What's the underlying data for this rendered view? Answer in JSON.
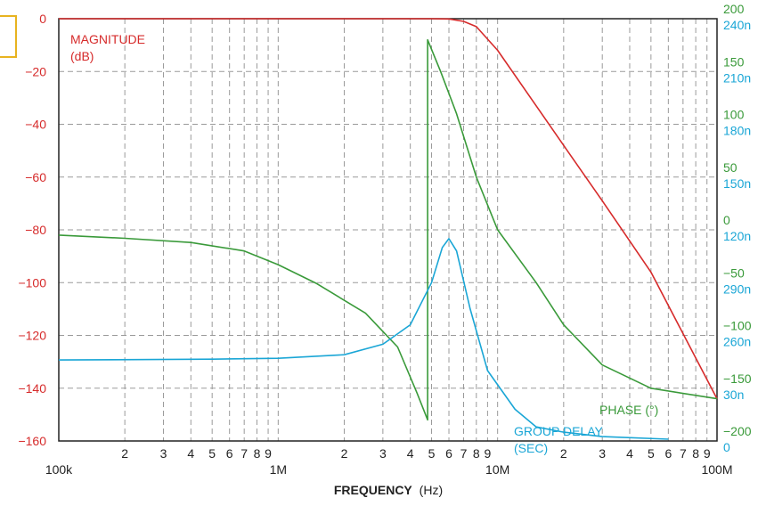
{
  "chart_data": {
    "type": "line",
    "xlabel_main": "FREQUENCY",
    "xlabel_unit": "(Hz)",
    "x_scale": "log",
    "xlim": [
      100000,
      100000000
    ],
    "x_major_ticks": [
      {
        "value": 100000,
        "label": "100k"
      },
      {
        "value": 1000000,
        "label": "1M"
      },
      {
        "value": 10000000,
        "label": "10M"
      },
      {
        "value": 100000000,
        "label": "100M"
      }
    ],
    "x_minor_labels": [
      "2",
      "3",
      "4",
      "5",
      "6",
      "7",
      "8",
      "9"
    ],
    "magnitude_axis": {
      "label_line1": "MAGNITUDE",
      "label_line2": "(dB)",
      "ylim": [
        -160,
        0
      ],
      "ticks": [
        "0",
        "−20",
        "−40",
        "−60",
        "−80",
        "−100",
        "−120",
        "−140",
        "−160"
      ],
      "tick_values": [
        0,
        -20,
        -40,
        -60,
        -80,
        -100,
        -120,
        -140,
        -160
      ],
      "color": "#d62b2b"
    },
    "phase_axis": {
      "ticks": [
        "200",
        "150",
        "100",
        "50",
        "0",
        "−50",
        "−100",
        "−150",
        "−200"
      ],
      "ylim": [
        -200,
        200
      ],
      "color": "#3a9a3a"
    },
    "group_delay_axis": {
      "ticks": [
        "240n",
        "210n",
        "180n",
        "150n",
        "120n",
        "290n",
        "260n",
        "30n",
        "0"
      ],
      "color": "#1aa6d6"
    },
    "series": [
      {
        "name": "MAGNITUDE (dB)",
        "axis": "magnitude",
        "color": "#d62b2b",
        "x": [
          100000,
          1000000,
          3000000,
          4000000,
          5000000,
          6000000,
          7000000,
          8000000,
          10000000,
          15000000,
          20000000,
          30000000,
          50000000,
          100000000
        ],
        "y": [
          0,
          0,
          0,
          0,
          0,
          -0.1,
          -1,
          -3,
          -12,
          -33,
          -48,
          -69,
          -96,
          -144
        ]
      },
      {
        "name": "PHASE (°)",
        "axis": "phase",
        "color": "#3a9a3a",
        "x": [
          100000,
          200000,
          400000,
          700000,
          1000000,
          1500000,
          2500000,
          3500000,
          4300000,
          4800000,
          4800000,
          5500000,
          6500000,
          8000000,
          10000000,
          15000000,
          20000000,
          30000000,
          50000000,
          100000000
        ],
        "y": [
          -5,
          -8,
          -12,
          -20,
          -33,
          -51,
          -79,
          -111,
          -155,
          -180,
          180,
          150,
          110,
          50,
          0,
          -50,
          -90,
          -128,
          -150,
          -160
        ]
      },
      {
        "name": "GROUP DELAY (SEC)",
        "axis": "group_delay",
        "color": "#1aa6d6",
        "x": [
          100000,
          500000,
          1000000,
          2000000,
          3000000,
          4000000,
          5000000,
          5600000,
          6000000,
          6500000,
          7500000,
          9000000,
          12000000,
          15000000,
          20000000,
          30000000,
          60000000
        ],
        "y": [
          46,
          46.5,
          47,
          49,
          55,
          66,
          90,
          110,
          115,
          108,
          75,
          40,
          18,
          8,
          5,
          2.5,
          1
        ]
      }
    ],
    "annotations": {
      "phase_label": "PHASE (°)",
      "group_delay_line1": "GROUP DELAY",
      "group_delay_line2": "(SEC)"
    }
  }
}
